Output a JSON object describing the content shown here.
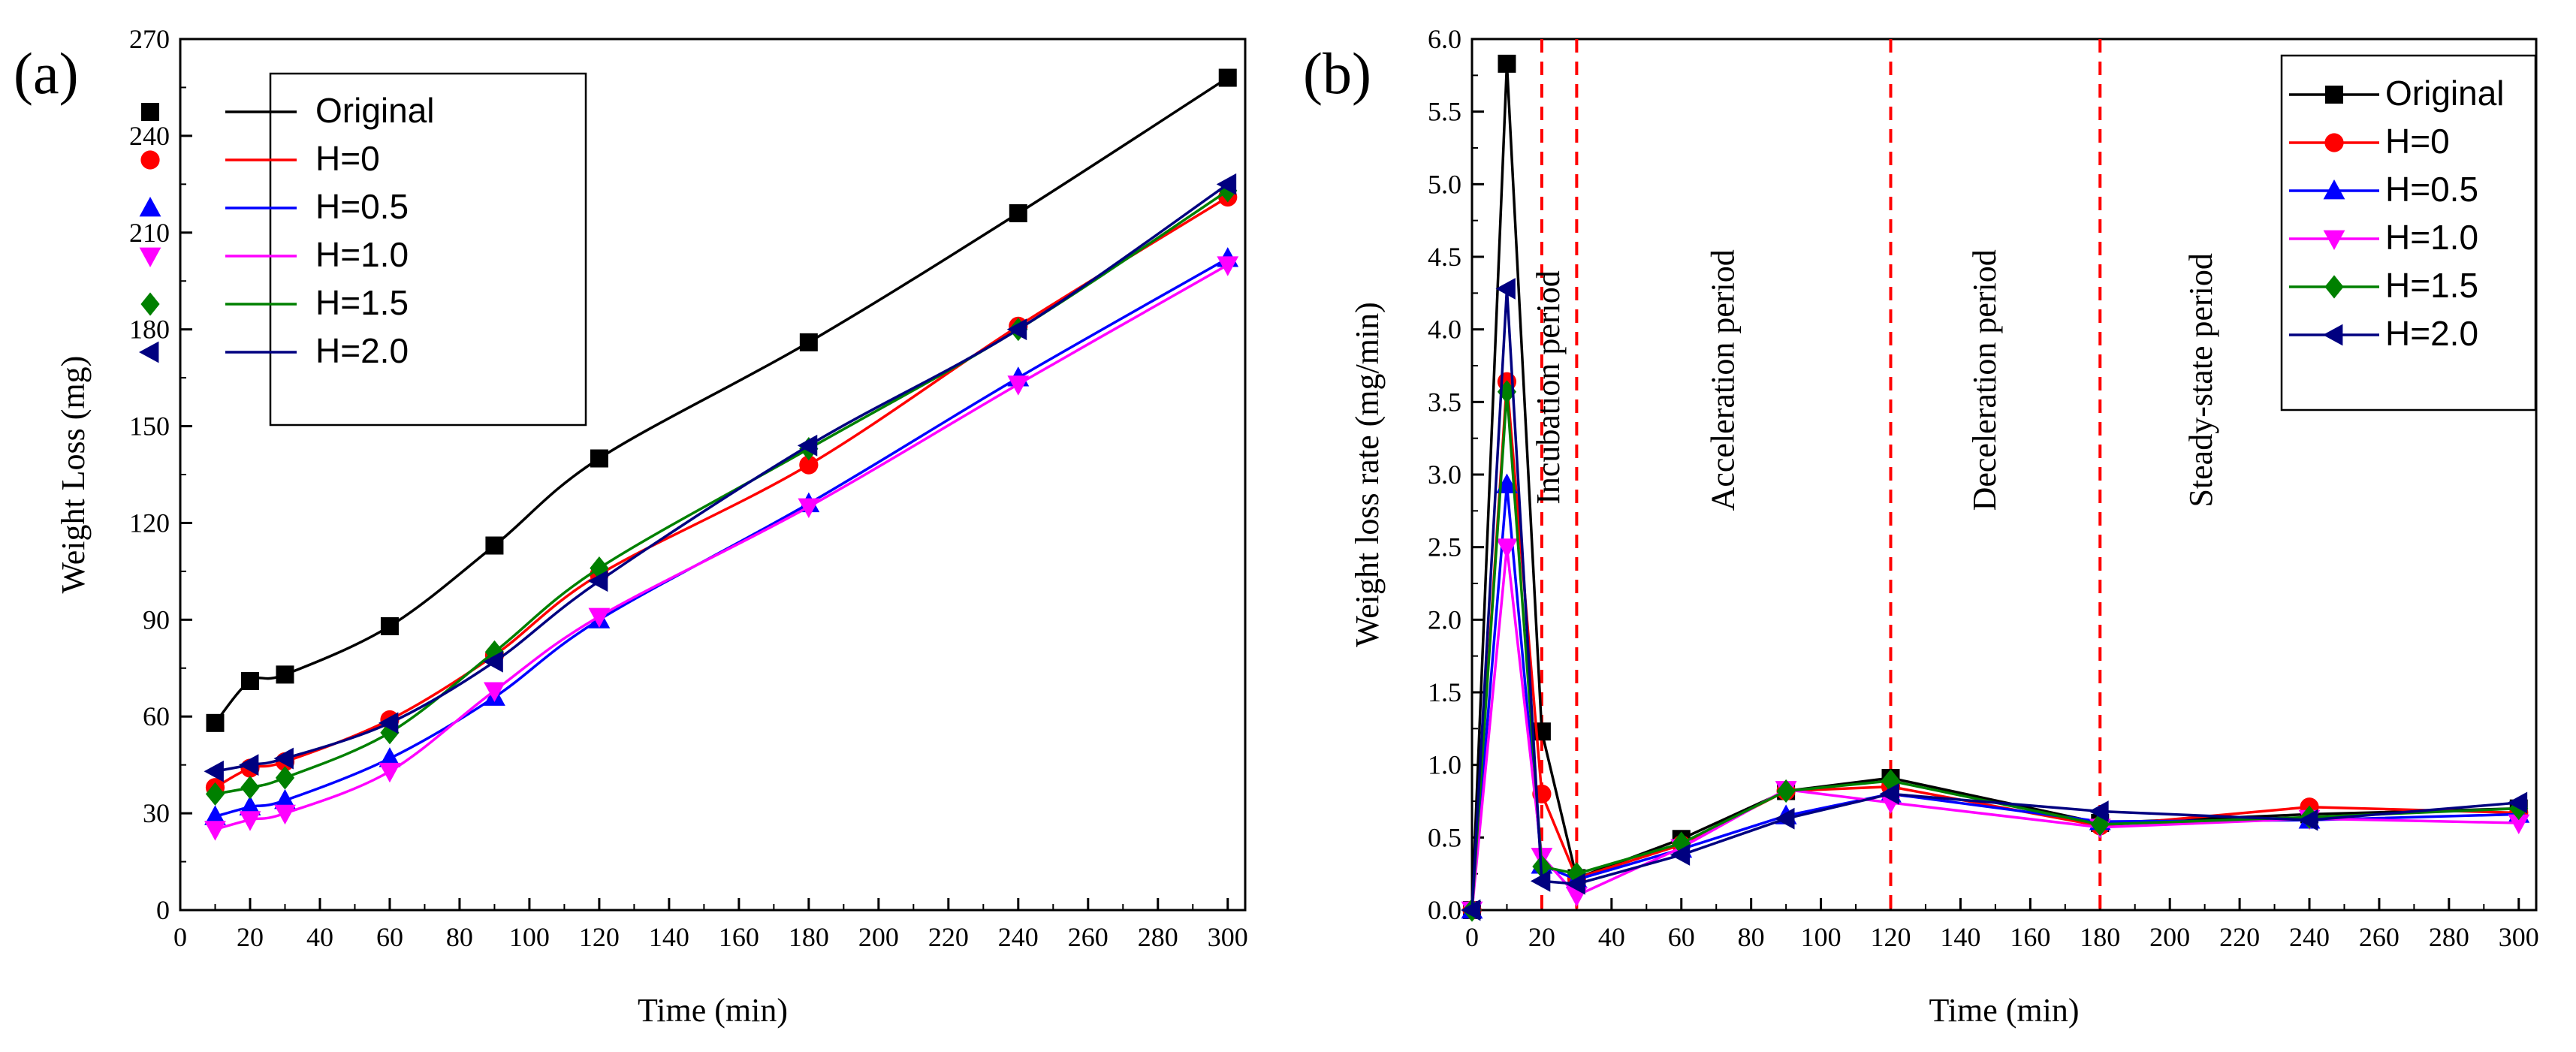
{
  "panels": [
    {
      "label": "(a)",
      "chart_data": {
        "type": "line",
        "xlabel": "Time (min)",
        "ylabel": "Weight Loss (mg)",
        "xlim": [
          0,
          305
        ],
        "ylim": [
          0,
          270
        ],
        "xticks": [
          0,
          20,
          40,
          60,
          80,
          100,
          120,
          140,
          160,
          180,
          200,
          220,
          240,
          260,
          280,
          300
        ],
        "yticks": [
          0,
          30,
          60,
          90,
          120,
          150,
          180,
          210,
          240,
          270
        ],
        "grid": false,
        "legend": "top-left",
        "x": [
          10,
          20,
          30,
          60,
          90,
          120,
          180,
          240,
          300
        ],
        "series": [
          {
            "name": "Original",
            "color": "#000000",
            "marker": "square",
            "values": [
              58,
              71,
              73,
              88,
              113,
              140,
              176,
              216,
              258
            ]
          },
          {
            "name": "H=0",
            "color": "#ff0000",
            "marker": "circle",
            "values": [
              38,
              44,
              46,
              59,
              79,
              104,
              138,
              181,
              221
            ]
          },
          {
            "name": "H=0.5",
            "color": "#0000ff",
            "marker": "triangle-up",
            "values": [
              29,
              32,
              34,
              47,
              66,
              90,
              126,
              165,
              202
            ]
          },
          {
            "name": "H=1.0",
            "color": "#ff00ff",
            "marker": "triangle-down",
            "values": [
              25,
              28,
              30,
              43,
              68,
              91,
              125,
              163,
              200
            ]
          },
          {
            "name": "H=1.5",
            "color": "#008000",
            "marker": "diamond",
            "values": [
              36,
              38,
              41,
              55,
              80,
              106,
              143,
              180,
              223
            ]
          },
          {
            "name": "H=2.0",
            "color": "#000080",
            "marker": "triangle-left",
            "values": [
              43,
              45,
              47,
              58,
              77,
              102,
              144,
              180,
              225
            ]
          }
        ]
      }
    },
    {
      "label": "(b)",
      "chart_data": {
        "type": "line",
        "xlabel": "Time (min)",
        "ylabel": "Weight loss rate (mg/min)",
        "xlim": [
          0,
          305
        ],
        "ylim": [
          0,
          6.0
        ],
        "xticks": [
          0,
          20,
          40,
          60,
          80,
          100,
          120,
          140,
          160,
          180,
          200,
          220,
          240,
          260,
          280,
          300
        ],
        "yticks": [
          0.0,
          0.5,
          1.0,
          1.5,
          2.0,
          2.5,
          3.0,
          3.5,
          4.0,
          4.5,
          5.0,
          5.5,
          6.0
        ],
        "grid": false,
        "legend": "top-right",
        "x": [
          0,
          10,
          20,
          30,
          60,
          90,
          120,
          180,
          240,
          300
        ],
        "series": [
          {
            "name": "Original",
            "color": "#000000",
            "marker": "square",
            "values": [
              0,
              5.83,
              1.23,
              0.22,
              0.49,
              0.82,
              0.91,
              0.6,
              0.66,
              0.7
            ]
          },
          {
            "name": "H=0",
            "color": "#ff0000",
            "marker": "circle",
            "values": [
              0,
              3.64,
              0.8,
              0.22,
              0.45,
              0.82,
              0.85,
              0.58,
              0.71,
              0.67
            ]
          },
          {
            "name": "H=0.5",
            "color": "#0000ff",
            "marker": "triangle-up",
            "values": [
              0,
              2.93,
              0.31,
              0.21,
              0.42,
              0.65,
              0.8,
              0.61,
              0.62,
              0.66
            ]
          },
          {
            "name": "H=1.0",
            "color": "#ff00ff",
            "marker": "triangle-down",
            "values": [
              0,
              2.5,
              0.37,
              0.1,
              0.43,
              0.83,
              0.74,
              0.57,
              0.63,
              0.6
            ]
          },
          {
            "name": "H=1.5",
            "color": "#008000",
            "marker": "diamond",
            "values": [
              0,
              3.57,
              0.3,
              0.25,
              0.46,
              0.82,
              0.89,
              0.59,
              0.64,
              0.7
            ]
          },
          {
            "name": "H=2.0",
            "color": "#000080",
            "marker": "triangle-left",
            "values": [
              0,
              4.28,
              0.2,
              0.18,
              0.38,
              0.63,
              0.8,
              0.68,
              0.62,
              0.74
            ]
          }
        ],
        "period_lines_x": [
          20,
          30,
          120,
          180
        ],
        "period_line_color": "#ff0000",
        "period_labels": [
          {
            "text": "Incubation period",
            "x": 25,
            "y": 3.6
          },
          {
            "text": "Acceleration period",
            "x": 75,
            "y": 3.65
          },
          {
            "text": "Deceleration period",
            "x": 150,
            "y": 3.65
          },
          {
            "text": "Steady-state period",
            "x": 212,
            "y": 3.65
          }
        ]
      }
    }
  ]
}
